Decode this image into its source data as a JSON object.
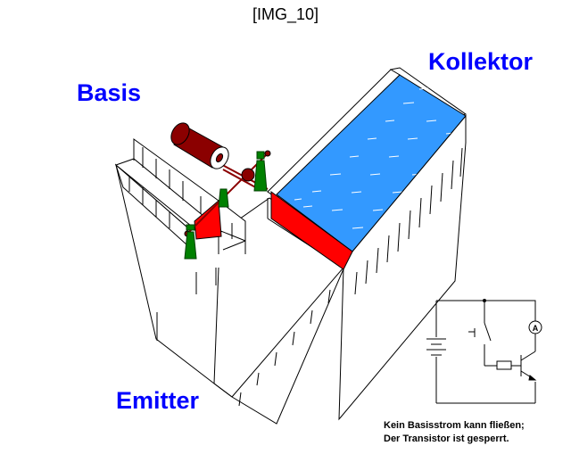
{
  "title": "[IMG_10]",
  "labels": {
    "basis": "Basis",
    "kollektor": "Kollektor",
    "emitter": "Emitter"
  },
  "caption": {
    "line1": "Kein Basisstrom kann fließen;",
    "line2": "Der Transistor ist gesperrt."
  },
  "circuit": {
    "ammeter_symbol": "A"
  },
  "colors": {
    "label_blue": "#0000ff",
    "water_blue": "#3399ff",
    "gate_red": "#ff0000",
    "valve_green": "#008000",
    "roller_red": "#8b0000"
  }
}
